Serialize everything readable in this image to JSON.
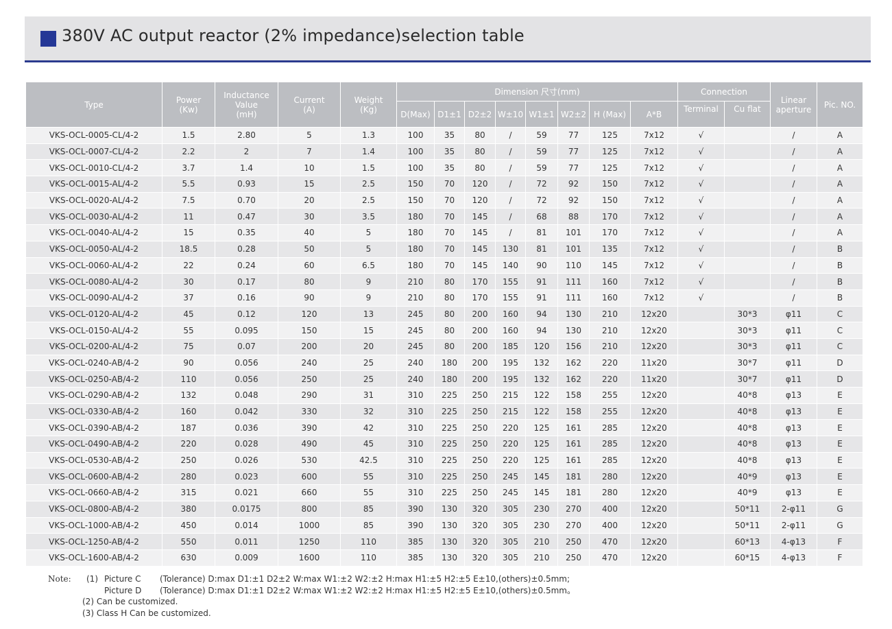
{
  "title": "380V AC output reactor (2% impedance)selection table",
  "colors": {
    "accent": "#243796",
    "header_bg": "#bcbec2",
    "title_bg": "#e3e3e5"
  },
  "headers": {
    "type": "Type",
    "power": "Power\n(Kw)",
    "inductance": "Inductance\nValue\n(mH)",
    "current": "Current\n(A)",
    "weight": "Weight\n(Kg)",
    "dimension": "Dimension 尺寸(mm)",
    "connection": "Connection",
    "linear": "Linear\naperture",
    "pic": "Pic. NO.",
    "dim_cols": [
      "D(Max)",
      "D1±1",
      "D2±2",
      "W±10",
      "W1±1",
      "W2±2",
      "H (Max)",
      "A*B"
    ],
    "conn_cols": [
      "Terminal",
      "Cu flat"
    ]
  },
  "rows": [
    [
      "VKS-OCL-0005-CL/4-2",
      "1.5",
      "2.80",
      "5",
      "1.3",
      "100",
      "35",
      "80",
      "/",
      "59",
      "77",
      "125",
      "7x12",
      "√",
      "",
      "/",
      "A"
    ],
    [
      "VKS-OCL-0007-CL/4-2",
      "2.2",
      "2",
      "7",
      "1.4",
      "100",
      "35",
      "80",
      "/",
      "59",
      "77",
      "125",
      "7x12",
      "√",
      "",
      "/",
      "A"
    ],
    [
      "VKS-OCL-0010-CL/4-2",
      "3.7",
      "1.4",
      "10",
      "1.5",
      "100",
      "35",
      "80",
      "/",
      "59",
      "77",
      "125",
      "7x12",
      "√",
      "",
      "/",
      "A"
    ],
    [
      "VKS-OCL-0015-AL/4-2",
      "5.5",
      "0.93",
      "15",
      "2.5",
      "150",
      "70",
      "120",
      "/",
      "72",
      "92",
      "150",
      "7x12",
      "√",
      "",
      "/",
      "A"
    ],
    [
      "VKS-OCL-0020-AL/4-2",
      "7.5",
      "0.70",
      "20",
      "2.5",
      "150",
      "70",
      "120",
      "/",
      "72",
      "92",
      "150",
      "7x12",
      "√",
      "",
      "/",
      "A"
    ],
    [
      "VKS-OCL-0030-AL/4-2",
      "11",
      "0.47",
      "30",
      "3.5",
      "180",
      "70",
      "145",
      "/",
      "68",
      "88",
      "170",
      "7x12",
      "√",
      "",
      "/",
      "A"
    ],
    [
      "VKS-OCL-0040-AL/4-2",
      "15",
      "0.35",
      "40",
      "5",
      "180",
      "70",
      "145",
      "/",
      "81",
      "101",
      "170",
      "7x12",
      "√",
      "",
      "/",
      "A"
    ],
    [
      "VKS-OCL-0050-AL/4-2",
      "18.5",
      "0.28",
      "50",
      "5",
      "180",
      "70",
      "145",
      "130",
      "81",
      "101",
      "135",
      "7x12",
      "√",
      "",
      "/",
      "B"
    ],
    [
      "VKS-OCL-0060-AL/4-2",
      "22",
      "0.24",
      "60",
      "6.5",
      "180",
      "70",
      "145",
      "140",
      "90",
      "110",
      "145",
      "7x12",
      "√",
      "",
      "/",
      "B"
    ],
    [
      "VKS-OCL-0080-AL/4-2",
      "30",
      "0.17",
      "80",
      "9",
      "210",
      "80",
      "170",
      "155",
      "91",
      "111",
      "160",
      "7x12",
      "√",
      "",
      "/",
      "B"
    ],
    [
      "VKS-OCL-0090-AL/4-2",
      "37",
      "0.16",
      "90",
      "9",
      "210",
      "80",
      "170",
      "155",
      "91",
      "111",
      "160",
      "7x12",
      "√",
      "",
      "/",
      "B"
    ],
    [
      "VKS-OCL-0120-AL/4-2",
      "45",
      "0.12",
      "120",
      "13",
      "245",
      "80",
      "200",
      "160",
      "94",
      "130",
      "210",
      "12x20",
      "",
      "30*3",
      "φ11",
      "C"
    ],
    [
      "VKS-OCL-0150-AL/4-2",
      "55",
      "0.095",
      "150",
      "15",
      "245",
      "80",
      "200",
      "160",
      "94",
      "130",
      "210",
      "12x20",
      "",
      "30*3",
      "φ11",
      "C"
    ],
    [
      "VKS-OCL-0200-AL/4-2",
      "75",
      "0.07",
      "200",
      "20",
      "245",
      "80",
      "200",
      "185",
      "120",
      "156",
      "210",
      "12x20",
      "",
      "30*3",
      "φ11",
      "C"
    ],
    [
      "VKS-OCL-0240-AB/4-2",
      "90",
      "0.056",
      "240",
      "25",
      "240",
      "180",
      "200",
      "195",
      "132",
      "162",
      "220",
      "11x20",
      "",
      "30*7",
      "φ11",
      "D"
    ],
    [
      "VKS-OCL-0250-AB/4-2",
      "110",
      "0.056",
      "250",
      "25",
      "240",
      "180",
      "200",
      "195",
      "132",
      "162",
      "220",
      "11x20",
      "",
      "30*7",
      "φ11",
      "D"
    ],
    [
      "VKS-OCL-0290-AB/4-2",
      "132",
      "0.048",
      "290",
      "31",
      "310",
      "225",
      "250",
      "215",
      "122",
      "158",
      "255",
      "12x20",
      "",
      "40*8",
      "φ13",
      "E"
    ],
    [
      "VKS-OCL-0330-AB/4-2",
      "160",
      "0.042",
      "330",
      "32",
      "310",
      "225",
      "250",
      "215",
      "122",
      "158",
      "255",
      "12x20",
      "",
      "40*8",
      "φ13",
      "E"
    ],
    [
      "VKS-OCL-0390-AB/4-2",
      "187",
      "0.036",
      "390",
      "42",
      "310",
      "225",
      "250",
      "220",
      "125",
      "161",
      "285",
      "12x20",
      "",
      "40*8",
      "φ13",
      "E"
    ],
    [
      "VKS-OCL-0490-AB/4-2",
      "220",
      "0.028",
      "490",
      "45",
      "310",
      "225",
      "250",
      "220",
      "125",
      "161",
      "285",
      "12x20",
      "",
      "40*8",
      "φ13",
      "E"
    ],
    [
      "VKS-OCL-0530-AB/4-2",
      "250",
      "0.026",
      "530",
      "42.5",
      "310",
      "225",
      "250",
      "220",
      "125",
      "161",
      "285",
      "12x20",
      "",
      "40*8",
      "φ13",
      "E"
    ],
    [
      "VKS-OCL-0600-AB/4-2",
      "280",
      "0.023",
      "600",
      "55",
      "310",
      "225",
      "250",
      "245",
      "145",
      "181",
      "280",
      "12x20",
      "",
      "40*9",
      "φ13",
      "E"
    ],
    [
      "VKS-OCL-0660-AB/4-2",
      "315",
      "0.021",
      "660",
      "55",
      "310",
      "225",
      "250",
      "245",
      "145",
      "181",
      "280",
      "12x20",
      "",
      "40*9",
      "φ13",
      "E"
    ],
    [
      "VKS-OCL-0800-AB/4-2",
      "380",
      "0.0175",
      "800",
      "85",
      "390",
      "130",
      "320",
      "305",
      "230",
      "270",
      "400",
      "12x20",
      "",
      "50*11",
      "2-φ11",
      "G"
    ],
    [
      "VKS-OCL-1000-AB/4-2",
      "450",
      "0.014",
      "1000",
      "85",
      "390",
      "130",
      "320",
      "305",
      "230",
      "270",
      "400",
      "12x20",
      "",
      "50*11",
      "2-φ11",
      "G"
    ],
    [
      "VKS-OCL-1250-AB/4-2",
      "550",
      "0.011",
      "1250",
      "110",
      "385",
      "130",
      "320",
      "305",
      "210",
      "250",
      "470",
      "12x20",
      "",
      "60*13",
      "4-φ13",
      "F"
    ],
    [
      "VKS-OCL-1600-AB/4-2",
      "630",
      "0.009",
      "1600",
      "110",
      "385",
      "130",
      "320",
      "305",
      "210",
      "250",
      "470",
      "12x20",
      "",
      "60*15",
      "4-φ13",
      "F"
    ]
  ],
  "notes": {
    "label": "Note:",
    "n1_num": "(1)",
    "n1_pic_c": "Picture C",
    "n1_text_c": "(Tolerance) D:max D1:±1 D2±2 W:max W1:±2 W2:±2 H:max H1:±5 H2:±5 E±10,(others)±0.5mm;",
    "n1_pic_d": "Picture D",
    "n1_text_d": "(Tolerance) D:max D1:±1 D2±2 W:max W1:±2 W2:±2 H:max H1:±5 H2:±5 E±10,(others)±0.5mm。",
    "n2": "(2)  Can be customized.",
    "n3": "(3)  Class H Can be customized."
  }
}
